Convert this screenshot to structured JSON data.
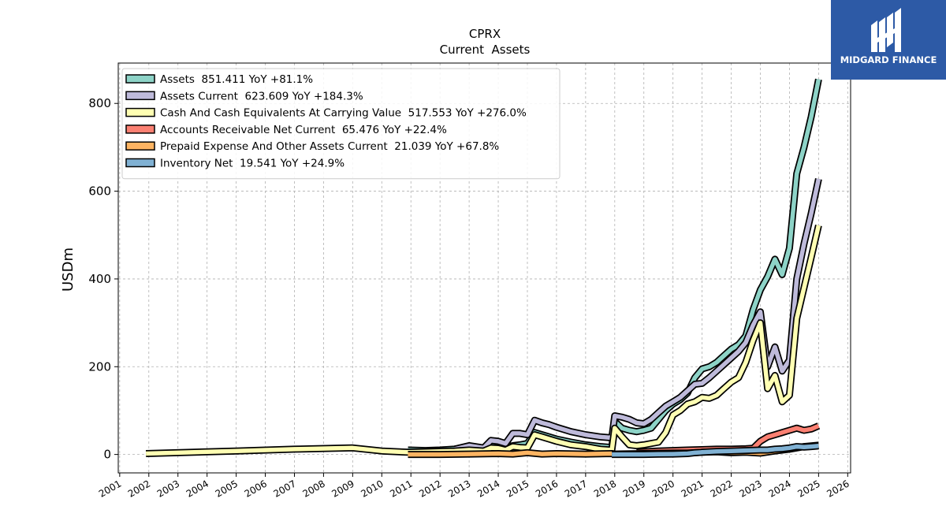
{
  "logo": {
    "text": "MIDGARD FINANCE",
    "bg_color": "#2d5aa6"
  },
  "chart_data": {
    "type": "line",
    "title": "CPRX",
    "subtitle": "Current  Assets",
    "ylabel": "USDm",
    "xlabel": "",
    "xlim": [
      2000.95,
      2026.1
    ],
    "ylim": [
      -42,
      892
    ],
    "yticks": [
      0,
      200,
      400,
      600,
      800
    ],
    "xticks": [
      "2001",
      "2002",
      "2003",
      "2004",
      "2005",
      "2006",
      "2007",
      "2008",
      "2009",
      "2010",
      "2011",
      "2012",
      "2013",
      "2014",
      "2015",
      "2016",
      "2017",
      "2018",
      "2019",
      "2020",
      "2021",
      "2022",
      "2023",
      "2024",
      "2025",
      "2026"
    ],
    "grid": true,
    "legend_position": "top-left",
    "series": [
      {
        "name": "Assets  851.411 YoY +81.1%",
        "color": "#8dd3c7",
        "points": [
          [
            2010.9,
            10
          ],
          [
            2011.5,
            9
          ],
          [
            2012.0,
            10
          ],
          [
            2012.5,
            12
          ],
          [
            2013.0,
            16
          ],
          [
            2013.5,
            14
          ],
          [
            2013.75,
            22
          ],
          [
            2014.0,
            24
          ],
          [
            2014.25,
            17
          ],
          [
            2014.5,
            20
          ],
          [
            2014.75,
            22
          ],
          [
            2015.0,
            25
          ],
          [
            2015.25,
            50
          ],
          [
            2015.5,
            45
          ],
          [
            2015.75,
            40
          ],
          [
            2016.0,
            35
          ],
          [
            2016.5,
            28
          ],
          [
            2017.0,
            22
          ],
          [
            2017.5,
            18
          ],
          [
            2017.9,
            16
          ],
          [
            2018.0,
            75
          ],
          [
            2018.25,
            60
          ],
          [
            2018.5,
            55
          ],
          [
            2018.75,
            52
          ],
          [
            2019.0,
            55
          ],
          [
            2019.25,
            60
          ],
          [
            2019.5,
            80
          ],
          [
            2019.75,
            100
          ],
          [
            2020.0,
            115
          ],
          [
            2020.25,
            125
          ],
          [
            2020.5,
            140
          ],
          [
            2020.75,
            175
          ],
          [
            2021.0,
            195
          ],
          [
            2021.25,
            200
          ],
          [
            2021.5,
            210
          ],
          [
            2021.75,
            225
          ],
          [
            2022.0,
            240
          ],
          [
            2022.25,
            250
          ],
          [
            2022.5,
            270
          ],
          [
            2022.75,
            330
          ],
          [
            2023.0,
            375
          ],
          [
            2023.25,
            405
          ],
          [
            2023.5,
            445
          ],
          [
            2023.75,
            410
          ],
          [
            2024.0,
            470
          ],
          [
            2024.25,
            640
          ],
          [
            2024.5,
            700
          ],
          [
            2024.75,
            770
          ],
          [
            2025.0,
            855
          ]
        ]
      },
      {
        "name": "Assets Current  623.609 YoY +184.3%",
        "color": "#bebada",
        "points": [
          [
            2012.5,
            12
          ],
          [
            2013.0,
            20
          ],
          [
            2013.5,
            15
          ],
          [
            2013.75,
            32
          ],
          [
            2014.0,
            30
          ],
          [
            2014.25,
            25
          ],
          [
            2014.5,
            48
          ],
          [
            2014.75,
            48
          ],
          [
            2015.0,
            45
          ],
          [
            2015.25,
            78
          ],
          [
            2015.5,
            72
          ],
          [
            2015.75,
            68
          ],
          [
            2016.0,
            62
          ],
          [
            2016.5,
            52
          ],
          [
            2017.0,
            45
          ],
          [
            2017.5,
            40
          ],
          [
            2017.9,
            38
          ],
          [
            2018.0,
            88
          ],
          [
            2018.25,
            85
          ],
          [
            2018.5,
            80
          ],
          [
            2018.75,
            72
          ],
          [
            2019.0,
            70
          ],
          [
            2019.25,
            80
          ],
          [
            2019.5,
            95
          ],
          [
            2019.75,
            110
          ],
          [
            2020.0,
            120
          ],
          [
            2020.25,
            130
          ],
          [
            2020.5,
            145
          ],
          [
            2020.75,
            160
          ],
          [
            2021.0,
            162
          ],
          [
            2021.25,
            175
          ],
          [
            2021.5,
            190
          ],
          [
            2021.75,
            205
          ],
          [
            2022.0,
            220
          ],
          [
            2022.25,
            235
          ],
          [
            2022.5,
            255
          ],
          [
            2022.75,
            295
          ],
          [
            2023.0,
            325
          ],
          [
            2023.25,
            200
          ],
          [
            2023.5,
            245
          ],
          [
            2023.75,
            190
          ],
          [
            2024.0,
            215
          ],
          [
            2024.25,
            400
          ],
          [
            2024.5,
            480
          ],
          [
            2024.75,
            550
          ],
          [
            2025.0,
            628
          ]
        ]
      },
      {
        "name": "Cash And Cash Equivalents At Carrying Value  517.553 YoY +276.0%",
        "color": "#ffffb3",
        "points": [
          [
            2001.9,
            2
          ],
          [
            2005.0,
            8
          ],
          [
            2007.0,
            12
          ],
          [
            2009.0,
            15
          ],
          [
            2010.0,
            8
          ],
          [
            2010.9,
            5
          ],
          [
            2011.5,
            6
          ],
          [
            2012.0,
            7
          ],
          [
            2012.5,
            8
          ],
          [
            2013.0,
            10
          ],
          [
            2013.5,
            8
          ],
          [
            2013.75,
            15
          ],
          [
            2014.0,
            14
          ],
          [
            2014.25,
            10
          ],
          [
            2014.5,
            18
          ],
          [
            2014.75,
            16
          ],
          [
            2015.0,
            15
          ],
          [
            2015.25,
            45
          ],
          [
            2015.5,
            40
          ],
          [
            2015.75,
            35
          ],
          [
            2016.0,
            30
          ],
          [
            2016.5,
            22
          ],
          [
            2017.0,
            18
          ],
          [
            2017.5,
            12
          ],
          [
            2017.9,
            10
          ],
          [
            2018.0,
            60
          ],
          [
            2018.25,
            40
          ],
          [
            2018.5,
            22
          ],
          [
            2018.75,
            20
          ],
          [
            2019.0,
            22
          ],
          [
            2019.25,
            25
          ],
          [
            2019.5,
            28
          ],
          [
            2019.75,
            50
          ],
          [
            2020.0,
            90
          ],
          [
            2020.25,
            100
          ],
          [
            2020.5,
            115
          ],
          [
            2020.75,
            120
          ],
          [
            2021.0,
            130
          ],
          [
            2021.25,
            128
          ],
          [
            2021.5,
            135
          ],
          [
            2021.75,
            150
          ],
          [
            2022.0,
            165
          ],
          [
            2022.25,
            175
          ],
          [
            2022.5,
            210
          ],
          [
            2022.75,
            260
          ],
          [
            2023.0,
            300
          ],
          [
            2023.25,
            150
          ],
          [
            2023.5,
            180
          ],
          [
            2023.75,
            120
          ],
          [
            2024.0,
            135
          ],
          [
            2024.25,
            310
          ],
          [
            2024.5,
            380
          ],
          [
            2024.75,
            450
          ],
          [
            2025.0,
            522
          ]
        ]
      },
      {
        "name": "Accounts Receivable Net Current  65.476 YoY +22.4%",
        "color": "#fb8072",
        "points": [
          [
            2018.75,
            5
          ],
          [
            2019.0,
            6
          ],
          [
            2019.5,
            8
          ],
          [
            2020.0,
            9
          ],
          [
            2020.5,
            10
          ],
          [
            2021.0,
            11
          ],
          [
            2021.5,
            12
          ],
          [
            2022.0,
            12
          ],
          [
            2022.5,
            13
          ],
          [
            2022.75,
            14
          ],
          [
            2023.0,
            30
          ],
          [
            2023.25,
            40
          ],
          [
            2023.5,
            45
          ],
          [
            2023.75,
            50
          ],
          [
            2024.0,
            55
          ],
          [
            2024.25,
            60
          ],
          [
            2024.5,
            55
          ],
          [
            2024.75,
            58
          ],
          [
            2025.0,
            65
          ]
        ]
      },
      {
        "name": "Prepaid Expense And Other Assets Current  21.039 YoY +67.8%",
        "color": "#fdb462",
        "points": [
          [
            2010.9,
            0
          ],
          [
            2012.0,
            0
          ],
          [
            2013.0,
            1
          ],
          [
            2014.0,
            2
          ],
          [
            2014.5,
            1
          ],
          [
            2015.0,
            4
          ],
          [
            2015.5,
            1
          ],
          [
            2016.0,
            2
          ],
          [
            2017.0,
            1
          ],
          [
            2017.9,
            2
          ],
          [
            2018.0,
            1
          ],
          [
            2019.0,
            2
          ],
          [
            2020.0,
            3
          ],
          [
            2020.5,
            3
          ],
          [
            2021.0,
            5
          ],
          [
            2021.5,
            6
          ],
          [
            2022.0,
            4
          ],
          [
            2022.5,
            5
          ],
          [
            2023.0,
            3
          ],
          [
            2023.5,
            8
          ],
          [
            2024.0,
            12
          ],
          [
            2024.5,
            18
          ],
          [
            2025.0,
            21
          ]
        ]
      },
      {
        "name": "Inventory Net  19.541 YoY +24.9%",
        "color": "#80b1d3",
        "points": [
          [
            2017.9,
            0
          ],
          [
            2018.5,
            0
          ],
          [
            2019.0,
            0
          ],
          [
            2019.5,
            0.5
          ],
          [
            2020.0,
            1
          ],
          [
            2020.5,
            2
          ],
          [
            2020.75,
            4
          ],
          [
            2021.0,
            5
          ],
          [
            2021.5,
            7
          ],
          [
            2022.0,
            8
          ],
          [
            2022.5,
            9
          ],
          [
            2023.0,
            10
          ],
          [
            2023.25,
            10
          ],
          [
            2023.5,
            12
          ],
          [
            2023.75,
            13
          ],
          [
            2024.0,
            15
          ],
          [
            2024.25,
            18
          ],
          [
            2024.5,
            17
          ],
          [
            2024.75,
            18
          ],
          [
            2025.0,
            19.5
          ]
        ]
      }
    ]
  }
}
